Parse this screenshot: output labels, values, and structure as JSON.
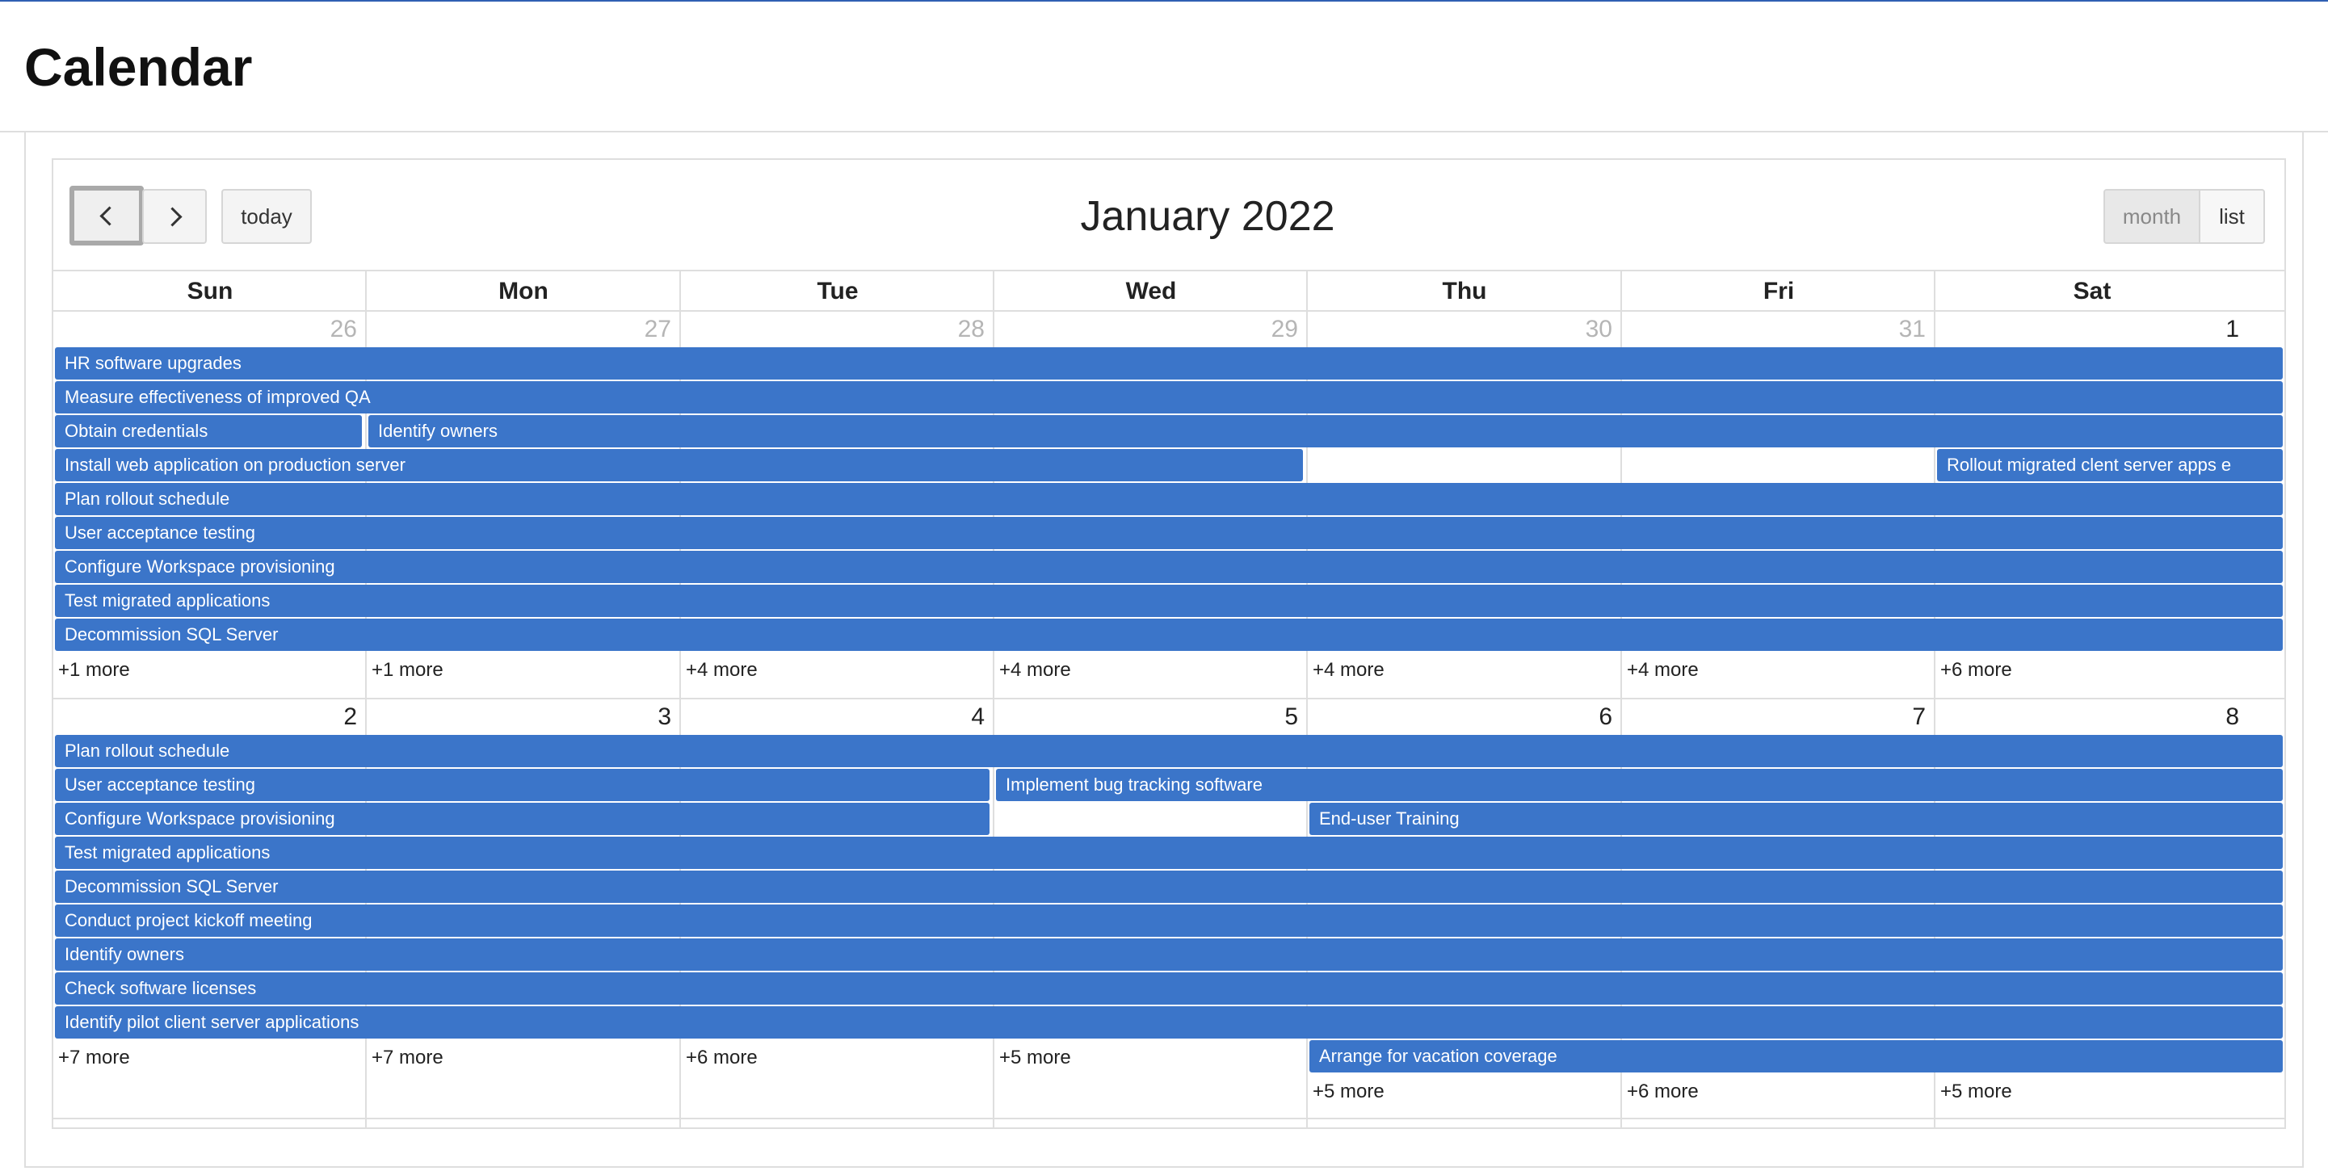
{
  "page": {
    "title": "Calendar"
  },
  "toolbar": {
    "prev_label": "",
    "next_label": "",
    "today_label": "today",
    "title": "January 2022",
    "view_month": "month",
    "view_list": "list"
  },
  "weekdays": [
    "Sun",
    "Mon",
    "Tue",
    "Wed",
    "Thu",
    "Fri",
    "Sat"
  ],
  "weeks": [
    {
      "days": [
        {
          "num": "26",
          "other_month": true
        },
        {
          "num": "27",
          "other_month": true
        },
        {
          "num": "28",
          "other_month": true
        },
        {
          "num": "29",
          "other_month": true
        },
        {
          "num": "30",
          "other_month": true
        },
        {
          "num": "31",
          "other_month": true
        },
        {
          "num": "1",
          "other_month": false
        }
      ],
      "events": [
        {
          "title": "HR software upgrades",
          "row": 0,
          "start": 0,
          "end": 6
        },
        {
          "title": "Measure effectiveness of improved QA",
          "row": 1,
          "start": 0,
          "end": 6
        },
        {
          "title": "Obtain credentials",
          "row": 2,
          "start": 0,
          "end": 0
        },
        {
          "title": "Identify owners",
          "row": 2,
          "start": 1,
          "end": 6
        },
        {
          "title": "Install web application on production server",
          "row": 3,
          "start": 0,
          "end": 3
        },
        {
          "title": "Rollout migrated clent server apps e",
          "row": 3,
          "start": 6,
          "end": 6
        },
        {
          "title": "Plan rollout schedule",
          "row": 4,
          "start": 0,
          "end": 6
        },
        {
          "title": "User acceptance testing",
          "row": 5,
          "start": 0,
          "end": 6
        },
        {
          "title": "Configure Workspace provisioning",
          "row": 6,
          "start": 0,
          "end": 6
        },
        {
          "title": "Test migrated applications",
          "row": 7,
          "start": 0,
          "end": 6
        },
        {
          "title": "Decommission SQL Server",
          "row": 8,
          "start": 0,
          "end": 6
        }
      ],
      "more": [
        "+1 more",
        "+1 more",
        "+4 more",
        "+4 more",
        "+4 more",
        "+4 more",
        "+6 more"
      ]
    },
    {
      "days": [
        {
          "num": "2",
          "other_month": false
        },
        {
          "num": "3",
          "other_month": false
        },
        {
          "num": "4",
          "other_month": false
        },
        {
          "num": "5",
          "other_month": false
        },
        {
          "num": "6",
          "other_month": false
        },
        {
          "num": "7",
          "other_month": false
        },
        {
          "num": "8",
          "other_month": false
        }
      ],
      "events": [
        {
          "title": "Plan rollout schedule",
          "row": 0,
          "start": 0,
          "end": 6
        },
        {
          "title": "User acceptance testing",
          "row": 1,
          "start": 0,
          "end": 2
        },
        {
          "title": "Implement bug tracking software",
          "row": 1,
          "start": 3,
          "end": 6
        },
        {
          "title": "Configure Workspace provisioning",
          "row": 2,
          "start": 0,
          "end": 2
        },
        {
          "title": "End-user Training",
          "row": 2,
          "start": 4,
          "end": 6
        },
        {
          "title": "Test migrated applications",
          "row": 3,
          "start": 0,
          "end": 6
        },
        {
          "title": "Decommission SQL Server",
          "row": 4,
          "start": 0,
          "end": 6
        },
        {
          "title": "Conduct project kickoff meeting",
          "row": 5,
          "start": 0,
          "end": 6
        },
        {
          "title": "Identify owners",
          "row": 6,
          "start": 0,
          "end": 6
        },
        {
          "title": "Check software licenses",
          "row": 7,
          "start": 0,
          "end": 6
        },
        {
          "title": "Identify pilot client server applications",
          "row": 8,
          "start": 0,
          "end": 6
        },
        {
          "title": "Arrange for vacation coverage",
          "row": 9,
          "start": 4,
          "end": 6
        }
      ],
      "more": [
        "+7 more",
        "+7 more",
        "+6 more",
        "+5 more",
        "+5 more",
        "+6 more",
        "+5 more"
      ],
      "more_rows": [
        9,
        9,
        9,
        9,
        10,
        10,
        10
      ]
    }
  ]
}
